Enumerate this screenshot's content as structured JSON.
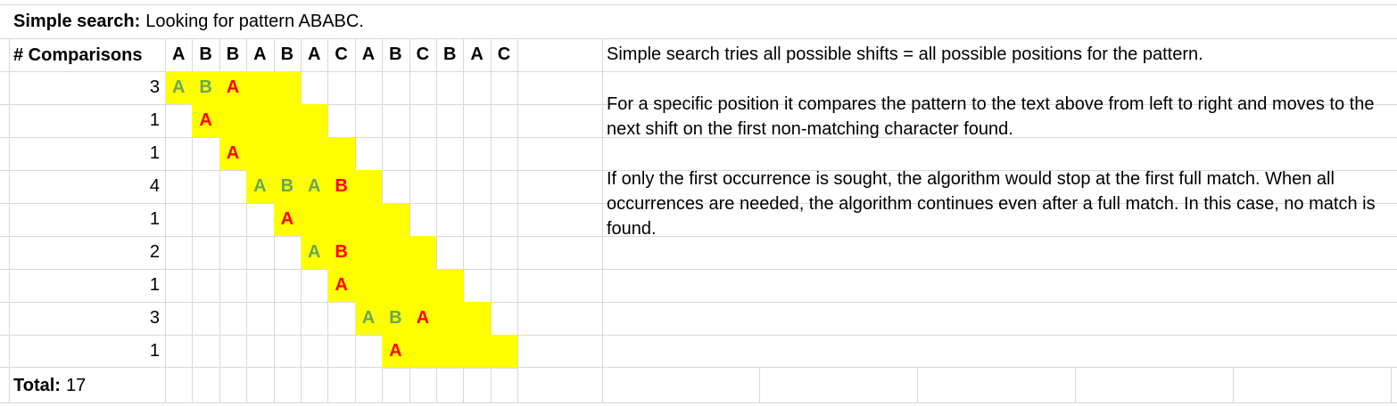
{
  "title": {
    "label": "Simple search:",
    "text": "Looking for pattern ABABC."
  },
  "header_label": "# Comparisons",
  "text_chars": [
    "A",
    "B",
    "B",
    "A",
    "B",
    "A",
    "C",
    "A",
    "B",
    "C",
    "B",
    "A",
    "C"
  ],
  "shifts": [
    {
      "count": "3",
      "start": 0,
      "chars": [
        "A",
        "B",
        "A"
      ],
      "status": [
        "match",
        "match",
        "mismatch"
      ]
    },
    {
      "count": "1",
      "start": 1,
      "chars": [
        "A"
      ],
      "status": [
        "mismatch"
      ]
    },
    {
      "count": "1",
      "start": 2,
      "chars": [
        "A"
      ],
      "status": [
        "mismatch"
      ]
    },
    {
      "count": "4",
      "start": 3,
      "chars": [
        "A",
        "B",
        "A",
        "B"
      ],
      "status": [
        "match",
        "match",
        "match",
        "mismatch"
      ]
    },
    {
      "count": "1",
      "start": 4,
      "chars": [
        "A"
      ],
      "status": [
        "mismatch"
      ]
    },
    {
      "count": "2",
      "start": 5,
      "chars": [
        "A",
        "B"
      ],
      "status": [
        "match",
        "mismatch"
      ]
    },
    {
      "count": "1",
      "start": 6,
      "chars": [
        "A"
      ],
      "status": [
        "mismatch"
      ]
    },
    {
      "count": "3",
      "start": 7,
      "chars": [
        "A",
        "B",
        "A"
      ],
      "status": [
        "match",
        "match",
        "mismatch"
      ]
    },
    {
      "count": "1",
      "start": 8,
      "chars": [
        "A"
      ],
      "status": [
        "mismatch"
      ]
    }
  ],
  "pattern_length": 5,
  "total": {
    "label": "Total:",
    "value": "17"
  },
  "description": [
    "Simple search tries all possible shifts = all possible positions for the pattern.",
    "",
    "For a specific position it compares the pattern to the text above from left to right and moves to the next shift on the first non-matching character found.",
    "",
    "If only the first occurrence is sought, the algorithm would stop at the first full match. When all occurrences are needed, the algorithm continues even after a full match. In this case, no match is found."
  ],
  "colors": {
    "highlight": "#ffff00",
    "match": "#6aa84f",
    "mismatch": "#ff0000",
    "grid": "#d9d9d9"
  }
}
